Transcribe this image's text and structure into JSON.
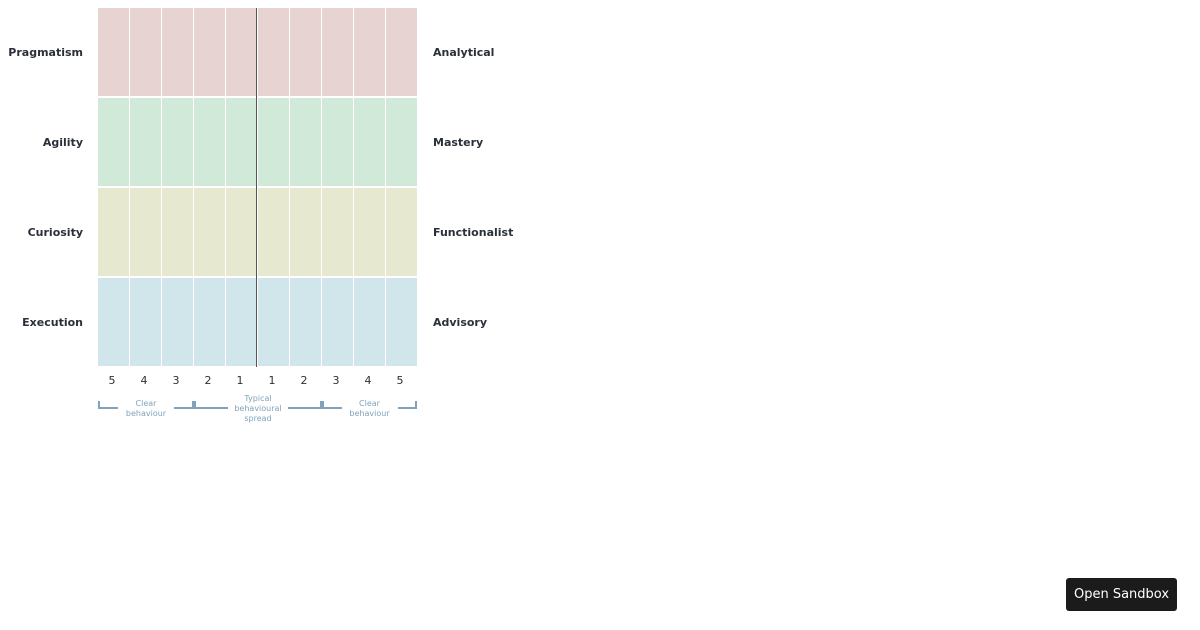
{
  "rows": [
    {
      "left": "Pragmatism",
      "right": "Analytical",
      "color": "#e8d3d3"
    },
    {
      "left": "Agility",
      "right": "Mastery",
      "color": "#d0e9d9"
    },
    {
      "left": "Curiosity",
      "right": "Functionalist",
      "color": "#e6e8d0"
    },
    {
      "left": "Execution",
      "right": "Advisory",
      "color": "#d1e6eb"
    }
  ],
  "scale": [
    5,
    4,
    3,
    2,
    1,
    1,
    2,
    3,
    4,
    5
  ],
  "brackets": [
    "Clear behaviour",
    "Typical behavioural spread",
    "Clear behaviour"
  ],
  "button": "Open Sandbox"
}
